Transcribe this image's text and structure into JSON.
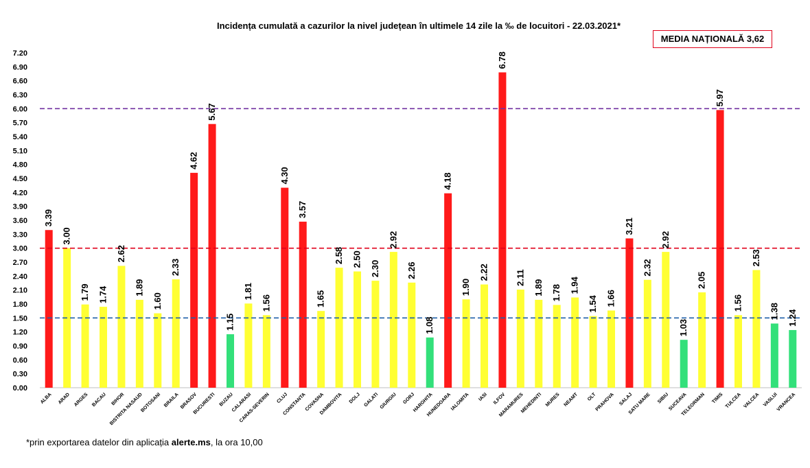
{
  "chart_data": {
    "type": "bar",
    "title": "Incidența cumulată a cazurilor la nivel județean în ultimele 14 zile la ‰ de locuitori - 22.03.2021*",
    "national_average_label": "MEDIA NAȚIONALĂ 3,62",
    "ylim": [
      0,
      7.2
    ],
    "y_ticks": [
      "0.00",
      "0.30",
      "0.60",
      "0.90",
      "1.20",
      "1.50",
      "1.80",
      "2.10",
      "2.40",
      "2.70",
      "3.00",
      "3.30",
      "3.60",
      "3.90",
      "4.20",
      "4.50",
      "4.80",
      "5.10",
      "5.40",
      "5.70",
      "6.00",
      "6.30",
      "6.60",
      "6.90",
      "7.20"
    ],
    "categories": [
      "ALBA",
      "ARAD",
      "ARGES",
      "BACAU",
      "BIHOR",
      "BISTRITA NASAUD",
      "BOTOSANI",
      "BRAILA",
      "BRASOV",
      "BUCURESTI",
      "BUZAU",
      "CALARASI",
      "CARAS-SEVERIN",
      "CLUJ",
      "CONSTANTA",
      "COVASNA",
      "DAMBOVITA",
      "DOLJ",
      "GALATI",
      "GIURGIU",
      "GORJ",
      "HARGHITA",
      "HUNEDOARA",
      "IALOMITA",
      "IASI",
      "ILFOV",
      "MARAMURES",
      "MEHEDINTI",
      "MURES",
      "NEAMT",
      "OLT",
      "PRAHOVA",
      "SALAJ",
      "SATU MARE",
      "SIBIU",
      "SUCEAVA",
      "TELEORMAN",
      "TIMIS",
      "TULCEA",
      "VALCEA",
      "VASLUI",
      "VRANCEA"
    ],
    "values": [
      3.39,
      3.0,
      1.79,
      1.74,
      2.62,
      1.89,
      1.6,
      2.33,
      4.62,
      5.67,
      1.15,
      1.81,
      1.56,
      4.3,
      3.57,
      1.65,
      2.58,
      2.5,
      2.3,
      2.92,
      2.26,
      1.08,
      4.18,
      1.9,
      2.22,
      6.78,
      2.11,
      1.89,
      1.78,
      1.94,
      1.54,
      1.66,
      3.21,
      2.32,
      2.92,
      1.03,
      2.05,
      5.97,
      1.56,
      2.53,
      1.38,
      1.24
    ],
    "value_labels": [
      "3.39",
      "3.00",
      "1.79",
      "1.74",
      "2.62",
      "1.89",
      "1.60",
      "2.33",
      "4.62",
      "5.67",
      "1.15",
      "1.81",
      "1.56",
      "4.30",
      "3.57",
      "1.65",
      "2.58",
      "2.50",
      "2.30",
      "2.92",
      "2.26",
      "1.08",
      "4.18",
      "1.90",
      "2.22",
      "6.78",
      "2.11",
      "1.89",
      "1.78",
      "1.94",
      "1.54",
      "1.66",
      "3.21",
      "2.32",
      "2.92",
      "1.03",
      "2.05",
      "5.97",
      "1.56",
      "2.53",
      "1.38",
      "1.24"
    ],
    "threshold_lines": [
      {
        "value": 6.0,
        "color": "#7030a0"
      },
      {
        "value": 3.0,
        "color": "#e0001a"
      },
      {
        "value": 1.5,
        "color": "#1f5fa8"
      }
    ],
    "color_scale": {
      "low": "#33e07a",
      "mid": "#ffff33",
      "high": "#ff1a1a"
    }
  },
  "footnote": {
    "prefix": "*prin exportarea datelor din aplicația ",
    "bold": "alerte.ms",
    "suffix": ", la ora 10,00"
  }
}
